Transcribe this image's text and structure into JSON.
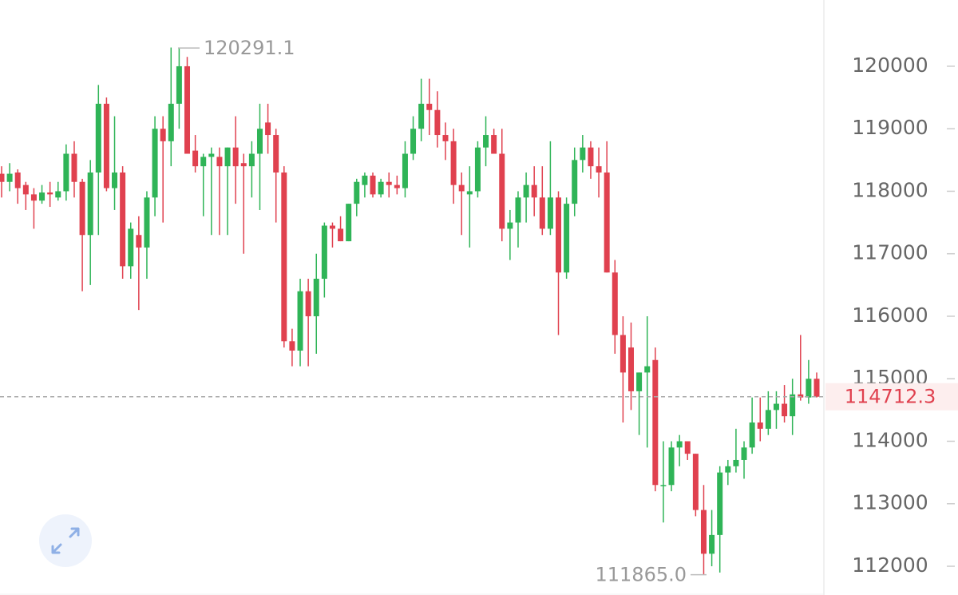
{
  "chart_data": {
    "type": "candlestick",
    "up_color": "#2fb457",
    "down_color": "#e0414f",
    "open": [
      118280,
      118150,
      118300,
      118100,
      117950,
      117850,
      117980,
      117900,
      118000,
      118600,
      118150,
      117300,
      118300,
      119400,
      118050,
      118300,
      116800,
      117300,
      117100,
      117900,
      119000,
      118800,
      119400,
      120000,
      118650,
      118400,
      118550,
      118550,
      118400,
      118700,
      118450,
      118400,
      118600,
      119100,
      118900,
      118300,
      115600,
      115450,
      116400,
      116000,
      116600,
      117450,
      117400,
      117200,
      117800,
      118100,
      118250,
      117950,
      118150,
      118100,
      118050,
      118600,
      119000,
      119400,
      119300,
      118900,
      118800,
      118100,
      117950,
      118000,
      118700,
      118900,
      118600,
      117400,
      117500,
      117900,
      118100,
      117900,
      117400,
      117900,
      116700,
      117800,
      118500,
      118700,
      118400,
      118300,
      116700,
      115700,
      115500,
      114800,
      115100,
      115300,
      113300,
      113300,
      113900,
      114000,
      113800,
      112900,
      112200,
      112500,
      113500,
      113600,
      113700,
      113900,
      114300,
      114200,
      114500,
      114600,
      114400,
      114750,
      114700,
      115000
    ],
    "high": [
      118400,
      118450,
      118350,
      118150,
      118050,
      118100,
      118150,
      118150,
      118750,
      118800,
      118200,
      118500,
      119700,
      119500,
      119200,
      118400,
      117500,
      117600,
      118000,
      119200,
      119200,
      120300,
      120291.1,
      120150,
      118900,
      118600,
      118700,
      118700,
      118700,
      119200,
      118600,
      118800,
      119400,
      119400,
      119000,
      118400,
      115800,
      116600,
      116600,
      117000,
      117500,
      117500,
      117600,
      117800,
      118200,
      118300,
      118300,
      118200,
      118300,
      118250,
      118800,
      119200,
      119800,
      119800,
      119600,
      119100,
      119000,
      118300,
      118400,
      118800,
      119200,
      119000,
      119000,
      117700,
      118000,
      118300,
      118400,
      118400,
      118800,
      118000,
      117900,
      118700,
      118900,
      118800,
      118700,
      118800,
      116900,
      116000,
      115900,
      115100,
      116000,
      115500,
      114000,
      114000,
      114100,
      114000,
      113800,
      113300,
      112900,
      113600,
      113700,
      114200,
      114000,
      114700,
      114700,
      114800,
      114800,
      114900,
      115000,
      115700,
      115300,
      115100
    ],
    "low": [
      117900,
      118000,
      117800,
      117700,
      117400,
      117800,
      117750,
      117850,
      117850,
      117900,
      116400,
      116500,
      117300,
      118000,
      117700,
      116600,
      116600,
      116100,
      116600,
      117600,
      117500,
      118400,
      119000,
      118600,
      118300,
      117600,
      117300,
      117300,
      117300,
      117800,
      117000,
      117900,
      117700,
      118600,
      117500,
      115500,
      115200,
      115200,
      115200,
      115400,
      116300,
      117100,
      117200,
      117200,
      117600,
      117900,
      117900,
      117900,
      117900,
      117950,
      117900,
      118500,
      118800,
      118900,
      118700,
      118500,
      117800,
      117300,
      117100,
      117900,
      118400,
      118600,
      117200,
      116900,
      117100,
      117500,
      117600,
      117300,
      117300,
      115700,
      116600,
      117600,
      118300,
      118200,
      117900,
      116700,
      115400,
      114300,
      114500,
      114100,
      113900,
      113200,
      112700,
      113200,
      113600,
      113700,
      112800,
      111865,
      112000,
      111900,
      113300,
      113500,
      113400,
      113800,
      114000,
      114100,
      114200,
      114300,
      114100,
      114650,
      114600,
      114700
    ],
    "close": [
      118150,
      118280,
      118050,
      117950,
      117850,
      117980,
      117950,
      118000,
      118600,
      118150,
      117300,
      118300,
      119400,
      118050,
      118300,
      116800,
      117400,
      117100,
      117900,
      119000,
      118800,
      119400,
      120000,
      118600,
      118400,
      118550,
      118600,
      118400,
      118700,
      118400,
      118400,
      118600,
      119000,
      118900,
      118300,
      115600,
      115450,
      116400,
      116000,
      116600,
      117450,
      117400,
      117200,
      117800,
      118150,
      118250,
      117950,
      118150,
      118100,
      118050,
      118600,
      119000,
      119400,
      119300,
      118900,
      118800,
      118100,
      118000,
      118000,
      118700,
      118900,
      118600,
      117400,
      117500,
      117900,
      118100,
      117900,
      117400,
      117900,
      116700,
      117800,
      118500,
      118700,
      118400,
      118300,
      116700,
      115700,
      115100,
      114800,
      115100,
      115200,
      113300,
      113300,
      113900,
      114000,
      113800,
      112900,
      112200,
      112500,
      113500,
      113600,
      113700,
      113900,
      114300,
      114200,
      114500,
      114600,
      114400,
      114750,
      114700,
      115000,
      114712.3
    ],
    "ylim": [
      111540,
      121060
    ],
    "yticks": [
      112000,
      113000,
      114000,
      115000,
      116000,
      117000,
      118000,
      119000,
      120000
    ],
    "last_price": 114712.3,
    "high_marker": 120291.1,
    "low_marker": {
      "value": 111865,
      "label": "111865.0"
    }
  }
}
